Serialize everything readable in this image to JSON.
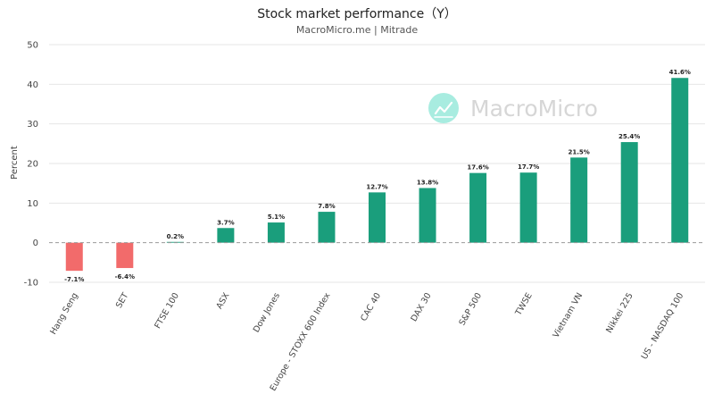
{
  "chart_data": {
    "type": "bar",
    "title": "Stock market performance（Y）",
    "subtitle": "MacroMicro.me | Mitrade",
    "ylabel": "Percent",
    "ylim": [
      -10,
      50
    ],
    "yticks": [
      -10,
      0,
      10,
      20,
      30,
      40,
      50
    ],
    "grid": true,
    "categories": [
      "Hang Seng",
      "SET",
      "FTSE 100",
      "ASX",
      "Dow Jones",
      "Europe - STOXX 600 Index",
      "CAC 40",
      "DAX 30",
      "S&P 500",
      "TWSE",
      "Vietnam VN",
      "Nikkei 225",
      "US - NASDAQ 100"
    ],
    "values": [
      -7.1,
      -6.4,
      0.2,
      3.7,
      5.1,
      7.8,
      12.7,
      13.8,
      17.6,
      17.7,
      21.5,
      25.4,
      41.6
    ],
    "value_labels": [
      "-7.1%",
      "-6.4%",
      "0.2%",
      "3.7%",
      "5.1%",
      "7.8%",
      "12.7%",
      "13.8%",
      "17.6%",
      "17.7%",
      "21.5%",
      "25.4%",
      "41.6%"
    ],
    "colors": {
      "positive": "#1a9e7c",
      "negative": "#f26b6b",
      "grid": "#e6e6e6",
      "zero_line": "#999999"
    }
  },
  "watermark": {
    "text": "MacroMicro",
    "icon": "chart-line-icon",
    "color": "#a8ece0"
  }
}
